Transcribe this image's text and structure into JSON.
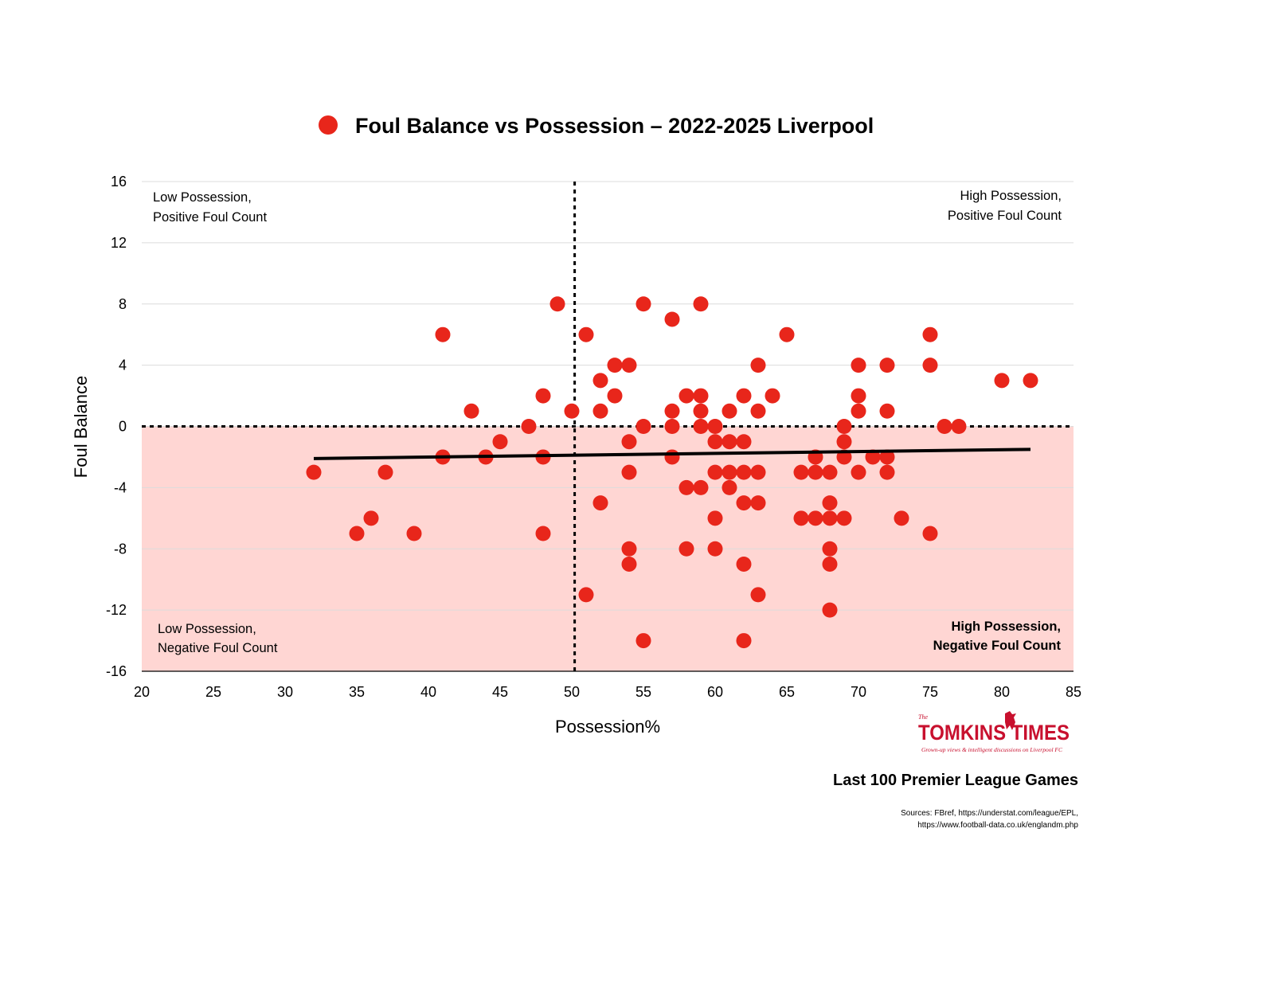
{
  "chart_data": {
    "type": "scatter",
    "title": "Foul Balance vs Possession – 2022-2025 Liverpool",
    "xlabel": "Possession%",
    "ylabel": "Foul Balance",
    "xlim": [
      20,
      85
    ],
    "ylim": [
      -16,
      16
    ],
    "x_ticks": [
      "20",
      "25",
      "30",
      "35",
      "40",
      "45",
      "50",
      "55",
      "60",
      "65",
      "70",
      "75",
      "80",
      "85"
    ],
    "y_ticks": [
      "16",
      "12",
      "8",
      "4",
      "0",
      "-4",
      "-8",
      "-12",
      "-16"
    ],
    "grid": true,
    "legend_position": "top",
    "marker_color": "#e8261b",
    "negative_region_color": "#ffd6d3",
    "reference_lines": {
      "x": 50.2,
      "y": 0
    },
    "series": [
      {
        "points": [
          [
            32,
            -3
          ],
          [
            35,
            -7
          ],
          [
            36,
            -6
          ],
          [
            37,
            -3
          ],
          [
            39,
            -7
          ],
          [
            41,
            6
          ],
          [
            41,
            -2
          ],
          [
            43,
            1
          ],
          [
            44,
            -2
          ],
          [
            45,
            -1
          ],
          [
            47,
            0
          ],
          [
            48,
            2
          ],
          [
            48,
            -2
          ],
          [
            48,
            -7
          ],
          [
            49,
            8
          ],
          [
            50,
            1
          ],
          [
            51,
            6
          ],
          [
            51,
            -11
          ],
          [
            52,
            3
          ],
          [
            52,
            1
          ],
          [
            52,
            -5
          ],
          [
            53,
            4
          ],
          [
            53,
            2
          ],
          [
            54,
            4
          ],
          [
            54,
            -1
          ],
          [
            54,
            -3
          ],
          [
            54,
            -8
          ],
          [
            54,
            -9
          ],
          [
            55,
            8
          ],
          [
            55,
            0
          ],
          [
            55,
            -14
          ],
          [
            57,
            7
          ],
          [
            57,
            1
          ],
          [
            57,
            0
          ],
          [
            57,
            -2
          ],
          [
            58,
            2
          ],
          [
            58,
            -4
          ],
          [
            58,
            -8
          ],
          [
            59,
            8
          ],
          [
            59,
            2
          ],
          [
            59,
            1
          ],
          [
            59,
            0
          ],
          [
            59,
            -4
          ],
          [
            60,
            0
          ],
          [
            60,
            -1
          ],
          [
            60,
            -3
          ],
          [
            60,
            -6
          ],
          [
            60,
            -8
          ],
          [
            61,
            1
          ],
          [
            61,
            -1
          ],
          [
            61,
            -3
          ],
          [
            61,
            -4
          ],
          [
            62,
            2
          ],
          [
            62,
            -1
          ],
          [
            62,
            -3
          ],
          [
            62,
            -5
          ],
          [
            62,
            -9
          ],
          [
            62,
            -14
          ],
          [
            63,
            4
          ],
          [
            63,
            1
          ],
          [
            63,
            -3
          ],
          [
            63,
            -5
          ],
          [
            63,
            -11
          ],
          [
            64,
            2
          ],
          [
            65,
            6
          ],
          [
            66,
            -3
          ],
          [
            66,
            -6
          ],
          [
            67,
            -2
          ],
          [
            67,
            -3
          ],
          [
            67,
            -6
          ],
          [
            68,
            -3
          ],
          [
            68,
            -5
          ],
          [
            68,
            -6
          ],
          [
            68,
            -8
          ],
          [
            68,
            -9
          ],
          [
            68,
            -12
          ],
          [
            69,
            0
          ],
          [
            69,
            -1
          ],
          [
            69,
            -2
          ],
          [
            69,
            -6
          ],
          [
            70,
            4
          ],
          [
            70,
            2
          ],
          [
            70,
            1
          ],
          [
            70,
            -3
          ],
          [
            71,
            -2
          ],
          [
            72,
            4
          ],
          [
            72,
            1
          ],
          [
            72,
            -2
          ],
          [
            72,
            -3
          ],
          [
            73,
            -6
          ],
          [
            75,
            6
          ],
          [
            75,
            4
          ],
          [
            75,
            -7
          ],
          [
            76,
            0
          ],
          [
            77,
            0
          ],
          [
            80,
            3
          ],
          [
            82,
            3
          ]
        ]
      }
    ],
    "trendline": {
      "x": [
        32,
        82
      ],
      "y": [
        -2.1,
        -1.5
      ],
      "color": "#000000"
    },
    "annotations": {
      "top_left": [
        "Low Possession,",
        "Positive Foul Count"
      ],
      "top_right": [
        "High Possession,",
        "Positive Foul Count"
      ],
      "bottom_left": [
        "Low Possession,",
        "Negative Foul Count"
      ],
      "bottom_right": [
        "High Possession,",
        "Negative Foul Count"
      ]
    },
    "subtitle": "Last 100 Premier League Games",
    "sources": [
      "Sources: FBref, https://understat.com/league/EPL,",
      "https://www.football-data.co.uk/englandm.php"
    ]
  },
  "logo": {
    "the": "The",
    "name": "TOMKINS TIMES",
    "tagline": "Grown-up views & intelligent discussions on Liverpool FC"
  }
}
